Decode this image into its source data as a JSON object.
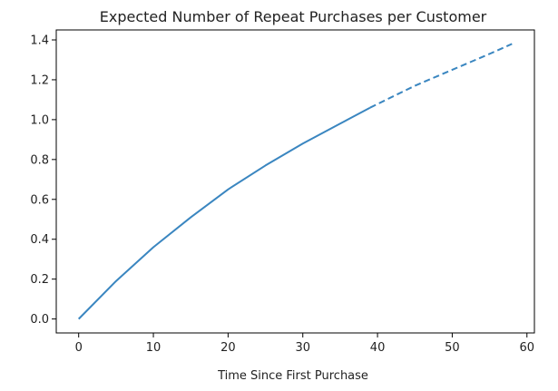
{
  "chart_data": {
    "type": "line",
    "title": "Expected Number of Repeat Purchases per Customer",
    "xlabel": "Time Since First Purchase",
    "ylabel": "",
    "xlim": [
      -3,
      61
    ],
    "ylim": [
      -0.07,
      1.45
    ],
    "xticks": [
      0,
      10,
      20,
      30,
      40,
      50,
      60
    ],
    "yticks": [
      0.0,
      0.2,
      0.4,
      0.6,
      0.8,
      1.0,
      1.2,
      1.4
    ],
    "ytick_labels": [
      "0.0",
      "0.2",
      "0.4",
      "0.6",
      "0.8",
      "1.0",
      "1.2",
      "1.4"
    ],
    "grid": false,
    "series": [
      {
        "style": "solid",
        "color": "#3a86c0",
        "x": [
          0,
          5,
          10,
          15,
          20,
          25,
          30,
          35,
          39
        ],
        "y": [
          0.0,
          0.19,
          0.36,
          0.51,
          0.65,
          0.77,
          0.88,
          0.98,
          1.06
        ]
      },
      {
        "style": "dashed",
        "color": "#3a86c0",
        "x": [
          39,
          45,
          50,
          55,
          58
        ],
        "y": [
          1.06,
          1.17,
          1.25,
          1.33,
          1.38
        ]
      }
    ]
  }
}
